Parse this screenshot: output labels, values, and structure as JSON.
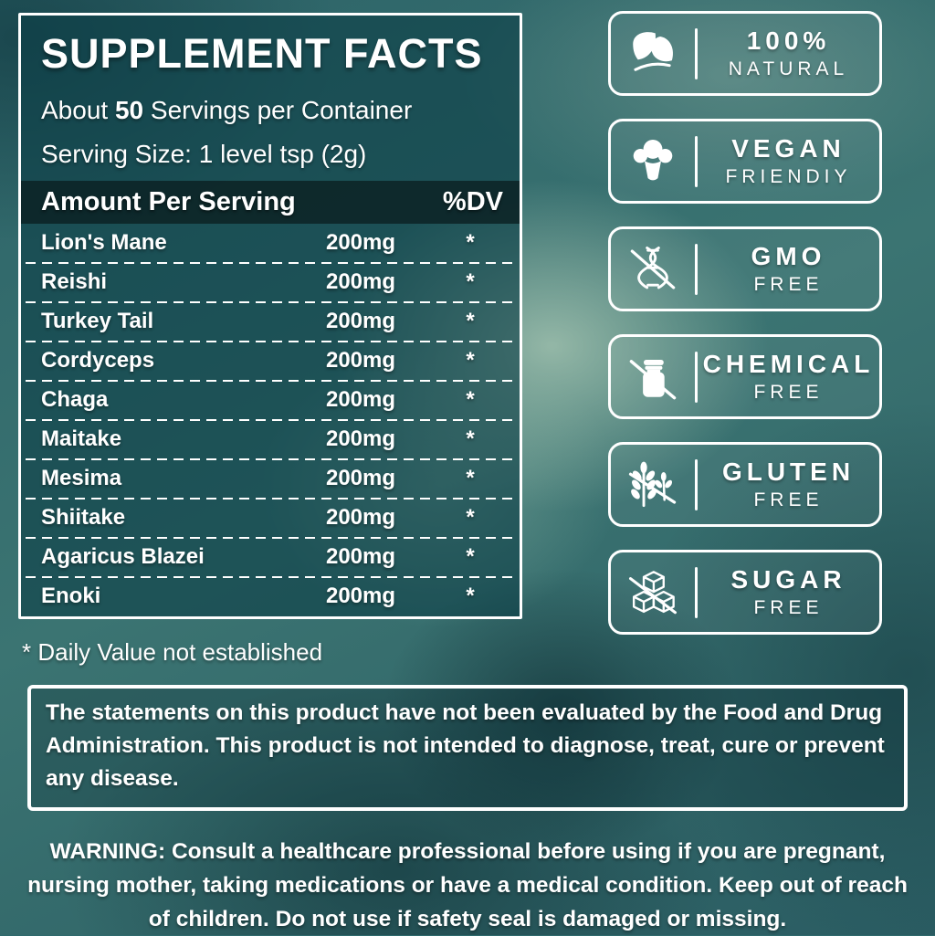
{
  "panel": {
    "title": "SUPPLEMENT FACTS",
    "servings": {
      "prefix": "About",
      "count": "50",
      "suffix": "Servings per Container"
    },
    "serving_size": "Serving Size: 1 level tsp (2g)",
    "table": {
      "header": {
        "amount": "Amount Per Serving",
        "dv": "%DV"
      },
      "rows": [
        {
          "name": "Lion's Mane",
          "amount": "200mg",
          "dv": "*"
        },
        {
          "name": "Reishi",
          "amount": "200mg",
          "dv": "*"
        },
        {
          "name": "Turkey Tail",
          "amount": "200mg",
          "dv": "*"
        },
        {
          "name": "Cordyceps",
          "amount": "200mg",
          "dv": "*"
        },
        {
          "name": "Chaga",
          "amount": "200mg",
          "dv": "*"
        },
        {
          "name": "Maitake",
          "amount": "200mg",
          "dv": "*"
        },
        {
          "name": "Mesima",
          "amount": "200mg",
          "dv": "*"
        },
        {
          "name": "Shiitake",
          "amount": "200mg",
          "dv": "*"
        },
        {
          "name": "Agaricus Blazei",
          "amount": "200mg",
          "dv": "*"
        },
        {
          "name": "Enoki",
          "amount": "200mg",
          "dv": "*"
        }
      ]
    },
    "footnote": "* Daily Value not established"
  },
  "badges": [
    {
      "icon": "leaf-icon",
      "line1": "100%",
      "line2": "NATURAL"
    },
    {
      "icon": "broccoli-icon",
      "line1": "VEGAN",
      "line2": "FRIENDIY"
    },
    {
      "icon": "dna-strikethrough-icon",
      "line1": "GMO",
      "line2": "FREE"
    },
    {
      "icon": "chemical-bottle-strikethrough-icon",
      "line1": "CHEMICAL",
      "line2": "FREE"
    },
    {
      "icon": "wheat-strikethrough-icon",
      "line1": "GLUTEN",
      "line2": "FREE"
    },
    {
      "icon": "sugar-cubes-strikethrough-icon",
      "line1": "SUGAR",
      "line2": "FREE"
    }
  ],
  "disclaimer": "The statements on this product have not been evaluated by the Food and Drug Administration. This product is not intended to diagnose, treat, cure or prevent any disease.",
  "warning": {
    "label": "WARNING:",
    "text": "Consult a healthcare professional before using if you are pregnant, nursing mother, taking medications or have a medical condition. Keep out of reach of children. Do not use if safety seal is damaged or missing."
  },
  "colors": {
    "background_teal": "#2f6a6d",
    "panel_fill": "#0d3f47",
    "table_header_fill": "#0c2224",
    "text": "#ffffff"
  }
}
